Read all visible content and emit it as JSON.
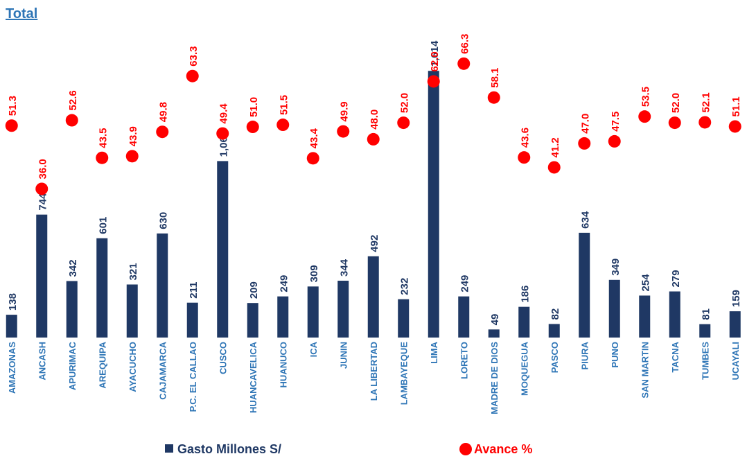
{
  "chart_data": {
    "type": "bar",
    "title": "Total",
    "categories": [
      "AMAZONAS",
      "ANCASH",
      "APURIMAC",
      "AREQUIPA",
      "AYACUCHO",
      "CAJAMARCA",
      "P.C. EL CALLAO",
      "CUSCO",
      "HUANCAVELICA",
      "HUANUCO",
      "ICA",
      "JUNIN",
      "LA LIBERTAD",
      "LAMBAYEQUE",
      "LIMA",
      "LORETO",
      "MADRE DE DIOS",
      "MOQUEGUA",
      "PASCO",
      "PIURA",
      "PUNO",
      "SAN MARTIN",
      "TACNA",
      "TUMBES",
      "UCAYALI"
    ],
    "series": [
      {
        "name": "Gasto Millones S/",
        "type": "bar",
        "color": "#1f3864",
        "values": [
          138,
          744,
          342,
          601,
          321,
          630,
          211,
          1068,
          209,
          249,
          309,
          344,
          492,
          232,
          1614,
          249,
          49,
          186,
          82,
          634,
          349,
          254,
          279,
          81,
          159
        ],
        "value_labels": [
          "138",
          "744",
          "342",
          "601",
          "321",
          "630",
          "211",
          "1,068",
          "209",
          "249",
          "309",
          "344",
          "492",
          "232",
          "1,614",
          "249",
          "49",
          "186",
          "82",
          "634",
          "349",
          "254",
          "279",
          "81",
          "159"
        ]
      },
      {
        "name": "Avance %",
        "type": "dot",
        "axis": "y2",
        "color": "#ff0000",
        "values": [
          51.3,
          36.0,
          52.6,
          43.5,
          43.9,
          49.8,
          63.3,
          49.4,
          51.0,
          51.5,
          43.4,
          49.9,
          48.0,
          52.0,
          62.0,
          66.3,
          58.1,
          43.6,
          41.2,
          47.0,
          47.5,
          53.5,
          52.0,
          52.1,
          51.1
        ],
        "value_labels": [
          "51.3",
          "36.0",
          "52.6",
          "43.5",
          "43.9",
          "49.8",
          "63.3",
          "49.4",
          "51.0",
          "51.5",
          "43.4",
          "49.9",
          "48.0",
          "52.0",
          "62.0",
          "66.3",
          "58.1",
          "43.6",
          "41.2",
          "47.0",
          "47.5",
          "53.5",
          "52.0",
          "52.1",
          "51.1"
        ]
      }
    ],
    "ylim": [
      0,
      1875
    ],
    "y2lim": [
      0,
      75
    ]
  }
}
